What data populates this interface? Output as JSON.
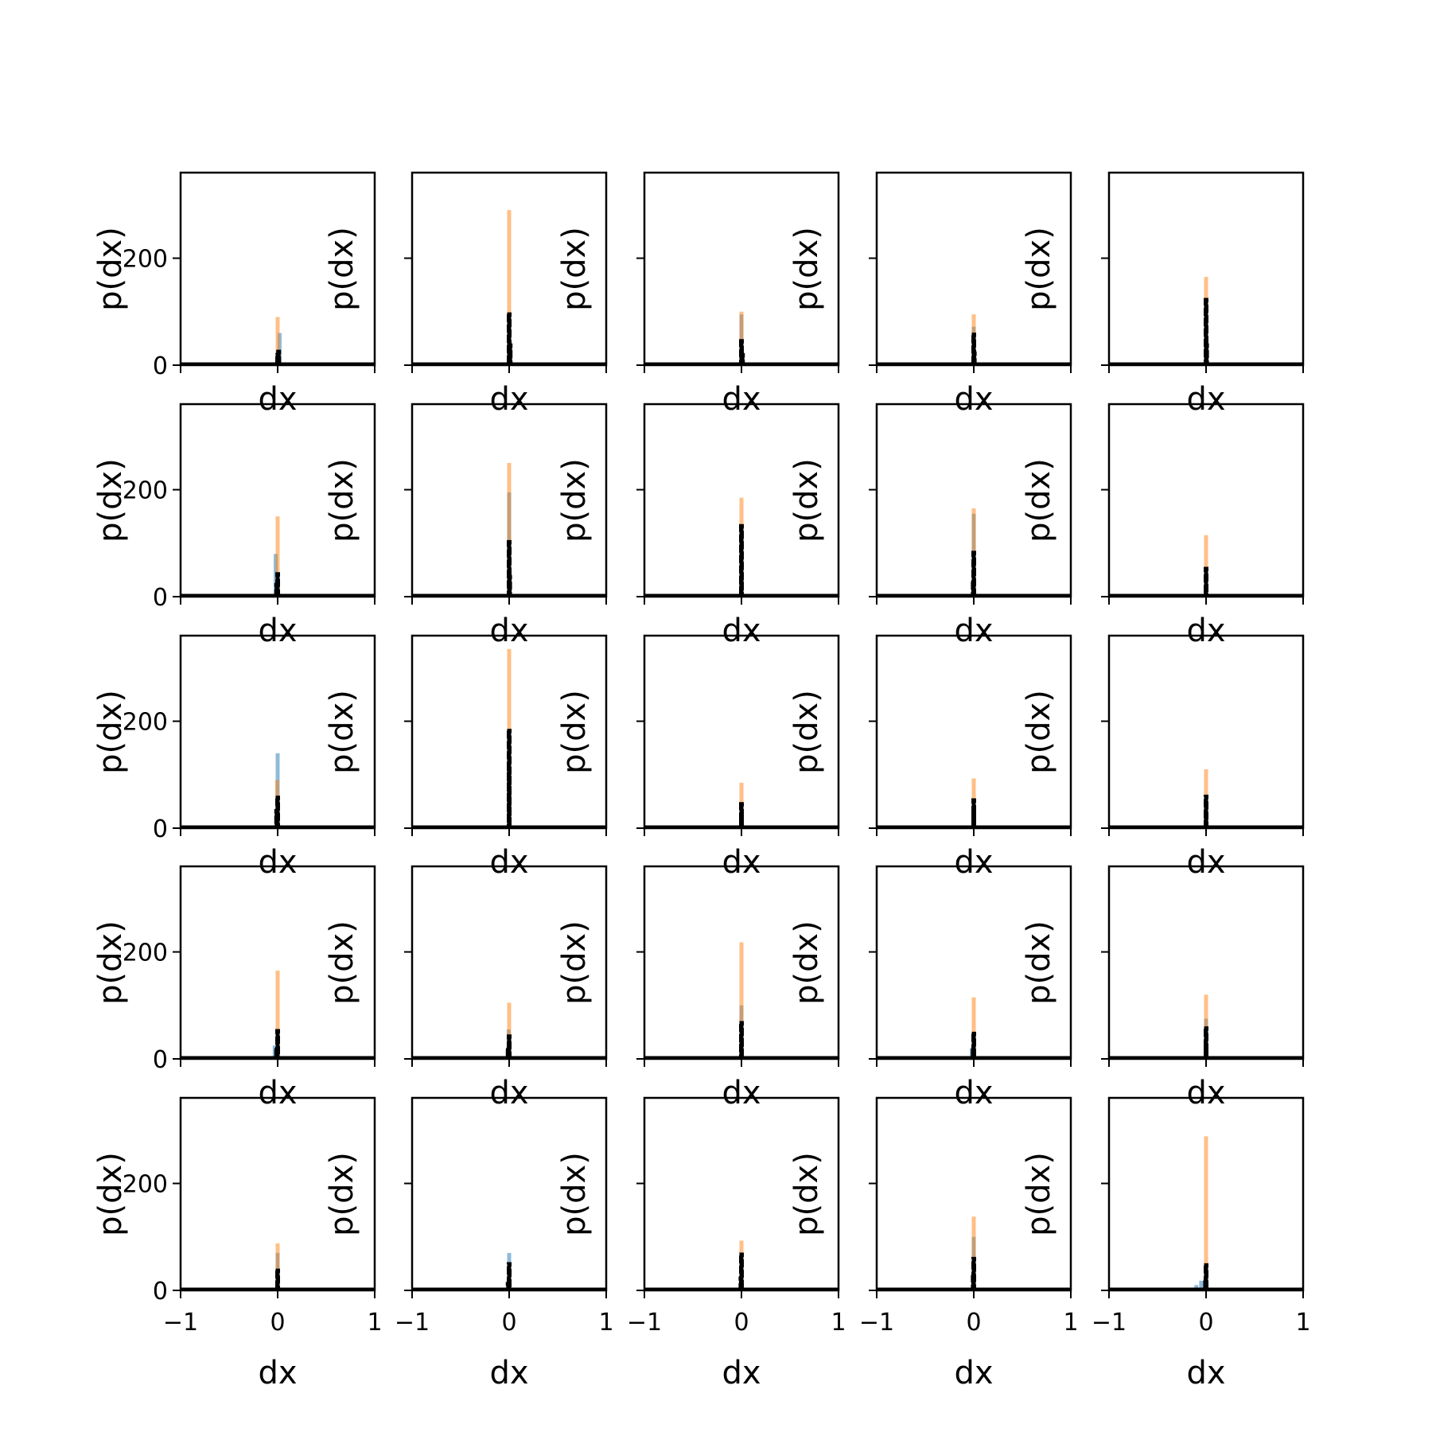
{
  "chart_data": {
    "type": "histogram-grid",
    "rows": 5,
    "cols": 5,
    "xlabel": "dx",
    "ylabel": "p(dx)",
    "xlim": [
      -1,
      1
    ],
    "ylim": [
      0,
      360
    ],
    "xticks": [
      -1,
      0,
      1
    ],
    "xtick_labels": [
      "−1",
      "0",
      "1"
    ],
    "yticks": [
      0,
      200
    ],
    "ytick_labels": [
      "0",
      "200"
    ],
    "colors": {
      "blue": "#1f77b4",
      "orange": "#ff7f0e",
      "black": "#000000"
    },
    "series_styles": [
      {
        "color": "#1f77b4",
        "opacity": 0.5
      },
      {
        "color": "#ff7f0e",
        "opacity": 0.5
      },
      {
        "color": "#000000",
        "opacity": 1.0,
        "style": "dashed-step"
      }
    ],
    "panels": [
      {
        "bars": [
          [
            0.02,
            60,
            0
          ],
          [
            0.005,
            25,
            1
          ],
          [
            0.0,
            90,
            1
          ],
          [
            0.01,
            28,
            2
          ],
          [
            0.0,
            22,
            2
          ]
        ]
      },
      {
        "bars": [
          [
            0.0,
            88,
            0
          ],
          [
            0.0,
            290,
            1
          ],
          [
            0.0,
            98,
            2
          ],
          [
            0.01,
            40,
            2
          ]
        ]
      },
      {
        "bars": [
          [
            0.0,
            95,
            0
          ],
          [
            0.0,
            100,
            1
          ],
          [
            0.0,
            48,
            2
          ],
          [
            0.01,
            22,
            2
          ]
        ]
      },
      {
        "bars": [
          [
            0.0,
            72,
            0
          ],
          [
            0.0,
            95,
            1
          ],
          [
            0.0,
            60,
            2
          ],
          [
            0.005,
            25,
            2
          ]
        ]
      },
      {
        "bars": [
          [
            0.0,
            120,
            0
          ],
          [
            0.0,
            165,
            1
          ],
          [
            0.0,
            125,
            2
          ],
          [
            0.005,
            40,
            2
          ]
        ]
      },
      {
        "bars": [
          [
            -0.02,
            80,
            0
          ],
          [
            0.0,
            150,
            1
          ],
          [
            0.0,
            45,
            2
          ],
          [
            -0.01,
            25,
            2
          ]
        ]
      },
      {
        "bars": [
          [
            0.0,
            195,
            0
          ],
          [
            0.0,
            250,
            1
          ],
          [
            0.0,
            105,
            2
          ],
          [
            0.005,
            40,
            2
          ]
        ]
      },
      {
        "bars": [
          [
            0.0,
            130,
            0
          ],
          [
            0.0,
            185,
            1
          ],
          [
            0.0,
            135,
            2
          ],
          [
            0.0,
            40,
            2
          ]
        ]
      },
      {
        "bars": [
          [
            0.0,
            155,
            0
          ],
          [
            0.0,
            165,
            1
          ],
          [
            0.0,
            85,
            2
          ],
          [
            -0.005,
            30,
            2
          ]
        ]
      },
      {
        "bars": [
          [
            0.0,
            50,
            0
          ],
          [
            0.0,
            115,
            1
          ],
          [
            0.0,
            55,
            2
          ],
          [
            0.0,
            18,
            2
          ]
        ]
      },
      {
        "bars": [
          [
            0.0,
            140,
            0
          ],
          [
            -0.005,
            90,
            1
          ],
          [
            0.0,
            60,
            2
          ],
          [
            -0.01,
            35,
            2
          ]
        ]
      },
      {
        "bars": [
          [
            0.0,
            175,
            0
          ],
          [
            0.0,
            335,
            1
          ],
          [
            0.0,
            185,
            2
          ],
          [
            0.0,
            110,
            2
          ]
        ]
      },
      {
        "bars": [
          [
            0.0,
            35,
            0
          ],
          [
            0.0,
            85,
            1
          ],
          [
            0.0,
            48,
            2
          ],
          [
            0.0,
            22,
            2
          ]
        ]
      },
      {
        "bars": [
          [
            0.0,
            40,
            0
          ],
          [
            0.0,
            93,
            1
          ],
          [
            0.0,
            55,
            2
          ],
          [
            0.0,
            30,
            2
          ]
        ]
      },
      {
        "bars": [
          [
            0.0,
            50,
            0
          ],
          [
            0.0,
            110,
            1
          ],
          [
            0.0,
            62,
            2
          ],
          [
            0.0,
            25,
            2
          ]
        ]
      },
      {
        "bars": [
          [
            -0.03,
            25,
            0
          ],
          [
            0.0,
            165,
            1
          ],
          [
            0.0,
            55,
            2
          ],
          [
            -0.01,
            20,
            2
          ]
        ]
      },
      {
        "bars": [
          [
            -0.005,
            55,
            0
          ],
          [
            0.0,
            105,
            1
          ],
          [
            0.0,
            45,
            2
          ],
          [
            -0.01,
            20,
            2
          ]
        ]
      },
      {
        "bars": [
          [
            0.0,
            100,
            0
          ],
          [
            0.0,
            218,
            1
          ],
          [
            0.0,
            70,
            2
          ],
          [
            0.0,
            30,
            2
          ]
        ]
      },
      {
        "bars": [
          [
            -0.02,
            20,
            0
          ],
          [
            0.0,
            115,
            1
          ],
          [
            0.0,
            50,
            2
          ],
          [
            -0.005,
            20,
            2
          ]
        ]
      },
      {
        "bars": [
          [
            0.0,
            75,
            0
          ],
          [
            0.0,
            120,
            1
          ],
          [
            0.0,
            60,
            2
          ],
          [
            0.0,
            28,
            2
          ]
        ]
      },
      {
        "bars": [
          [
            0.0,
            70,
            0
          ],
          [
            0.0,
            88,
            1
          ],
          [
            0.0,
            40,
            2
          ],
          [
            0.0,
            20,
            2
          ]
        ]
      },
      {
        "bars": [
          [
            0.0,
            70,
            0
          ],
          [
            0.0,
            52,
            1
          ],
          [
            0.0,
            52,
            2
          ],
          [
            -0.01,
            15,
            2
          ]
        ]
      },
      {
        "bars": [
          [
            0.0,
            70,
            0
          ],
          [
            0.0,
            93,
            1
          ],
          [
            0.0,
            70,
            2
          ],
          [
            -0.005,
            25,
            2
          ]
        ]
      },
      {
        "bars": [
          [
            0.0,
            100,
            0
          ],
          [
            0.0,
            138,
            1
          ],
          [
            0.0,
            62,
            2
          ],
          [
            -0.005,
            28,
            2
          ]
        ]
      },
      {
        "bars": [
          [
            -0.05,
            18,
            0
          ],
          [
            -0.1,
            10,
            0
          ],
          [
            0.0,
            288,
            1
          ],
          [
            0.0,
            50,
            2
          ],
          [
            -0.005,
            20,
            2
          ]
        ]
      }
    ]
  }
}
